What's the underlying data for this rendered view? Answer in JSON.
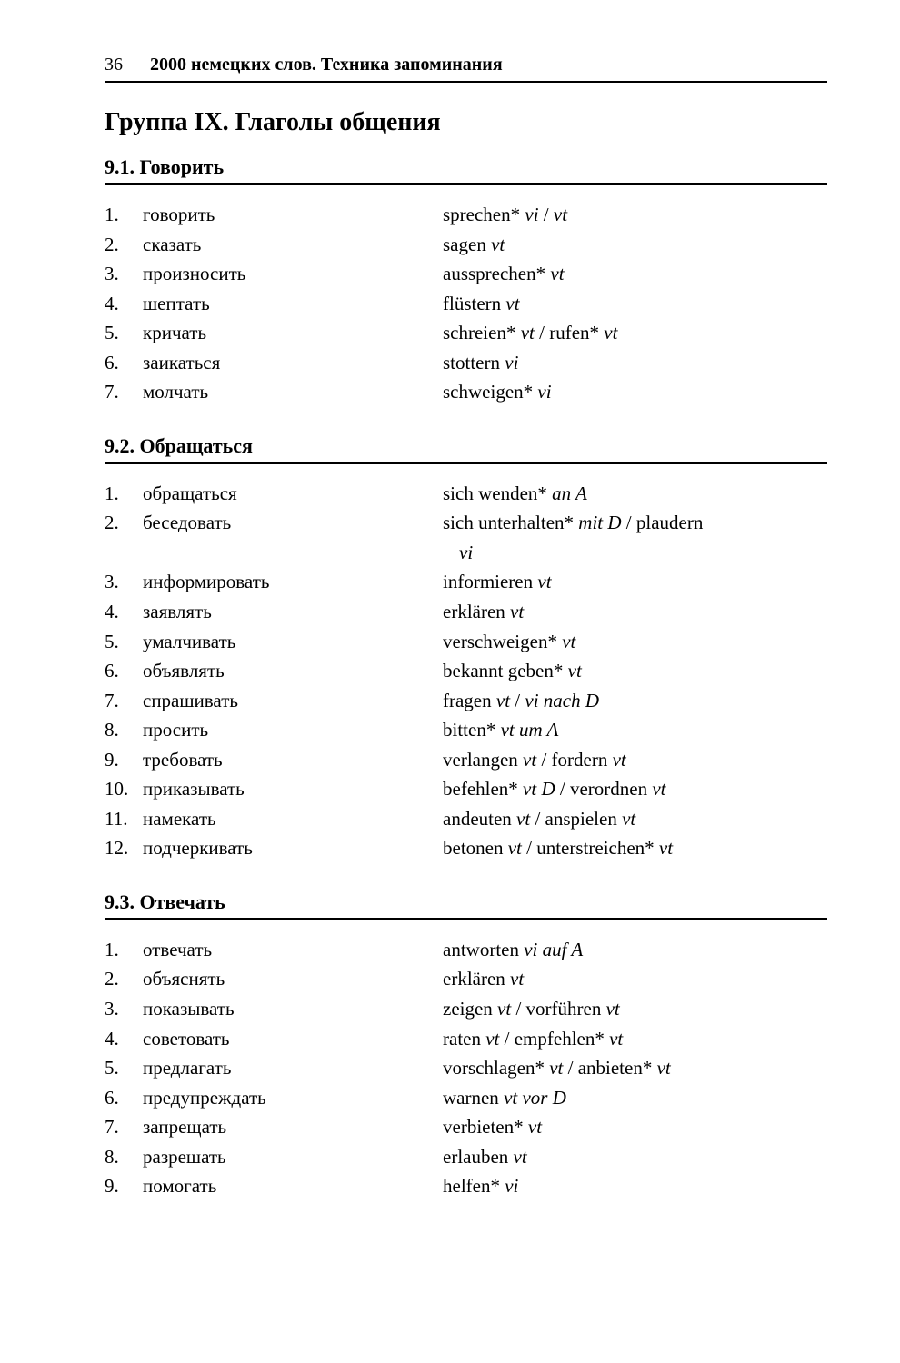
{
  "header": {
    "page_number": "36",
    "book_title": "2000 немецких слов. Техника запоминания"
  },
  "group_title": "Группа IX. Глаголы общения",
  "sections": [
    {
      "heading": "9.1. Говорить",
      "rows": [
        {
          "n": "1.",
          "ru": "говорить",
          "de_parts": [
            {
              "t": "sprechen* ",
              "i": false
            },
            {
              "t": "vi",
              "i": true
            },
            {
              "t": " / ",
              "i": false
            },
            {
              "t": "vt",
              "i": true
            }
          ]
        },
        {
          "n": "2.",
          "ru": "сказать",
          "de_parts": [
            {
              "t": "sagen ",
              "i": false
            },
            {
              "t": "vt",
              "i": true
            }
          ]
        },
        {
          "n": "3.",
          "ru": "произносить",
          "de_parts": [
            {
              "t": "aussprechen* ",
              "i": false
            },
            {
              "t": "vt",
              "i": true
            }
          ]
        },
        {
          "n": "4.",
          "ru": "шептать",
          "de_parts": [
            {
              "t": "flüstern ",
              "i": false
            },
            {
              "t": "vt",
              "i": true
            }
          ]
        },
        {
          "n": "5.",
          "ru": "кричать",
          "de_parts": [
            {
              "t": "schreien* ",
              "i": false
            },
            {
              "t": "vt",
              "i": true
            },
            {
              "t": " / rufen* ",
              "i": false
            },
            {
              "t": "vt",
              "i": true
            }
          ]
        },
        {
          "n": "6.",
          "ru": "заикаться",
          "de_parts": [
            {
              "t": "stottern ",
              "i": false
            },
            {
              "t": "vi",
              "i": true
            }
          ]
        },
        {
          "n": "7.",
          "ru": "молчать",
          "de_parts": [
            {
              "t": "schweigen* ",
              "i": false
            },
            {
              "t": "vi",
              "i": true
            }
          ]
        }
      ]
    },
    {
      "heading": "9.2. Обращаться",
      "rows": [
        {
          "n": "1.",
          "ru": "обращаться",
          "de_parts": [
            {
              "t": "sich wenden* ",
              "i": false
            },
            {
              "t": "an A",
              "i": true
            }
          ]
        },
        {
          "n": "2.",
          "ru": "беседовать",
          "de_parts": [
            {
              "t": "sich unterhalten* ",
              "i": false
            },
            {
              "t": "mit D",
              "i": true
            },
            {
              "t": " / plaudern",
              "i": false
            }
          ],
          "de_cont_parts": [
            {
              "t": "vi",
              "i": true
            }
          ]
        },
        {
          "n": "3.",
          "ru": "информировать",
          "de_parts": [
            {
              "t": "informieren ",
              "i": false
            },
            {
              "t": "vt",
              "i": true
            }
          ]
        },
        {
          "n": "4.",
          "ru": "заявлять",
          "de_parts": [
            {
              "t": "erklären ",
              "i": false
            },
            {
              "t": "vt",
              "i": true
            }
          ]
        },
        {
          "n": "5.",
          "ru": "умалчивать",
          "de_parts": [
            {
              "t": "verschweigen* ",
              "i": false
            },
            {
              "t": "vt",
              "i": true
            }
          ]
        },
        {
          "n": "6.",
          "ru": "объявлять",
          "de_parts": [
            {
              "t": "bekannt geben* ",
              "i": false
            },
            {
              "t": "vt",
              "i": true
            }
          ]
        },
        {
          "n": "7.",
          "ru": "спрашивать",
          "de_parts": [
            {
              "t": "fragen ",
              "i": false
            },
            {
              "t": "vt",
              "i": true
            },
            {
              "t": " / ",
              "i": false
            },
            {
              "t": "vi nach D",
              "i": true
            }
          ]
        },
        {
          "n": "8.",
          "ru": "просить",
          "de_parts": [
            {
              "t": "bitten* ",
              "i": false
            },
            {
              "t": "vt um A",
              "i": true
            }
          ]
        },
        {
          "n": "9.",
          "ru": "требовать",
          "de_parts": [
            {
              "t": "verlangen ",
              "i": false
            },
            {
              "t": "vt",
              "i": true
            },
            {
              "t": " / fordern ",
              "i": false
            },
            {
              "t": "vt",
              "i": true
            }
          ]
        },
        {
          "n": "10.",
          "ru": "приказывать",
          "de_parts": [
            {
              "t": "befehlen* ",
              "i": false
            },
            {
              "t": "vt D",
              "i": true
            },
            {
              "t": " / verordnen ",
              "i": false
            },
            {
              "t": "vt",
              "i": true
            }
          ]
        },
        {
          "n": "11.",
          "ru": "намекать",
          "de_parts": [
            {
              "t": "andeuten ",
              "i": false
            },
            {
              "t": "vt",
              "i": true
            },
            {
              "t": " / anspielen ",
              "i": false
            },
            {
              "t": "vt",
              "i": true
            }
          ]
        },
        {
          "n": "12.",
          "ru": "подчеркивать",
          "de_parts": [
            {
              "t": "betonen ",
              "i": false
            },
            {
              "t": "vt",
              "i": true
            },
            {
              "t": " / unterstreichen* ",
              "i": false
            },
            {
              "t": "vt",
              "i": true
            }
          ]
        }
      ]
    },
    {
      "heading": "9.3. Отвечать",
      "rows": [
        {
          "n": "1.",
          "ru": "отвечать",
          "de_parts": [
            {
              "t": "antworten ",
              "i": false
            },
            {
              "t": "vi auf A",
              "i": true
            }
          ]
        },
        {
          "n": "2.",
          "ru": "объяснять",
          "de_parts": [
            {
              "t": "erklären ",
              "i": false
            },
            {
              "t": "vt",
              "i": true
            }
          ]
        },
        {
          "n": "3.",
          "ru": "показывать",
          "de_parts": [
            {
              "t": "zeigen ",
              "i": false
            },
            {
              "t": "vt",
              "i": true
            },
            {
              "t": " / vorführen ",
              "i": false
            },
            {
              "t": "vt",
              "i": true
            }
          ]
        },
        {
          "n": "4.",
          "ru": "советовать",
          "de_parts": [
            {
              "t": "raten ",
              "i": false
            },
            {
              "t": "vt",
              "i": true
            },
            {
              "t": " / empfehlen* ",
              "i": false
            },
            {
              "t": "vt",
              "i": true
            }
          ]
        },
        {
          "n": "5.",
          "ru": "предлагать",
          "de_parts": [
            {
              "t": "vorschlagen* ",
              "i": false
            },
            {
              "t": "vt",
              "i": true
            },
            {
              "t": " / anbieten* ",
              "i": false
            },
            {
              "t": "vt",
              "i": true
            }
          ]
        },
        {
          "n": "6.",
          "ru": "предупреждать",
          "de_parts": [
            {
              "t": "warnen ",
              "i": false
            },
            {
              "t": "vt vor D",
              "i": true
            }
          ]
        },
        {
          "n": "7.",
          "ru": "запрещать",
          "de_parts": [
            {
              "t": "verbieten* ",
              "i": false
            },
            {
              "t": "vt",
              "i": true
            }
          ]
        },
        {
          "n": "8.",
          "ru": "разрешать",
          "de_parts": [
            {
              "t": "erlauben ",
              "i": false
            },
            {
              "t": "vt",
              "i": true
            }
          ]
        },
        {
          "n": "9.",
          "ru": "помогать",
          "de_parts": [
            {
              "t": "helfen* ",
              "i": false
            },
            {
              "t": "vi",
              "i": true
            }
          ]
        }
      ]
    }
  ],
  "style": {
    "body_width": 990,
    "body_height": 1500,
    "background": "#ffffff",
    "text_color": "#000000",
    "rule_color": "#000000",
    "fontsize_body": 21,
    "fontsize_section": 22,
    "fontsize_group": 28,
    "fontsize_header": 20
  }
}
